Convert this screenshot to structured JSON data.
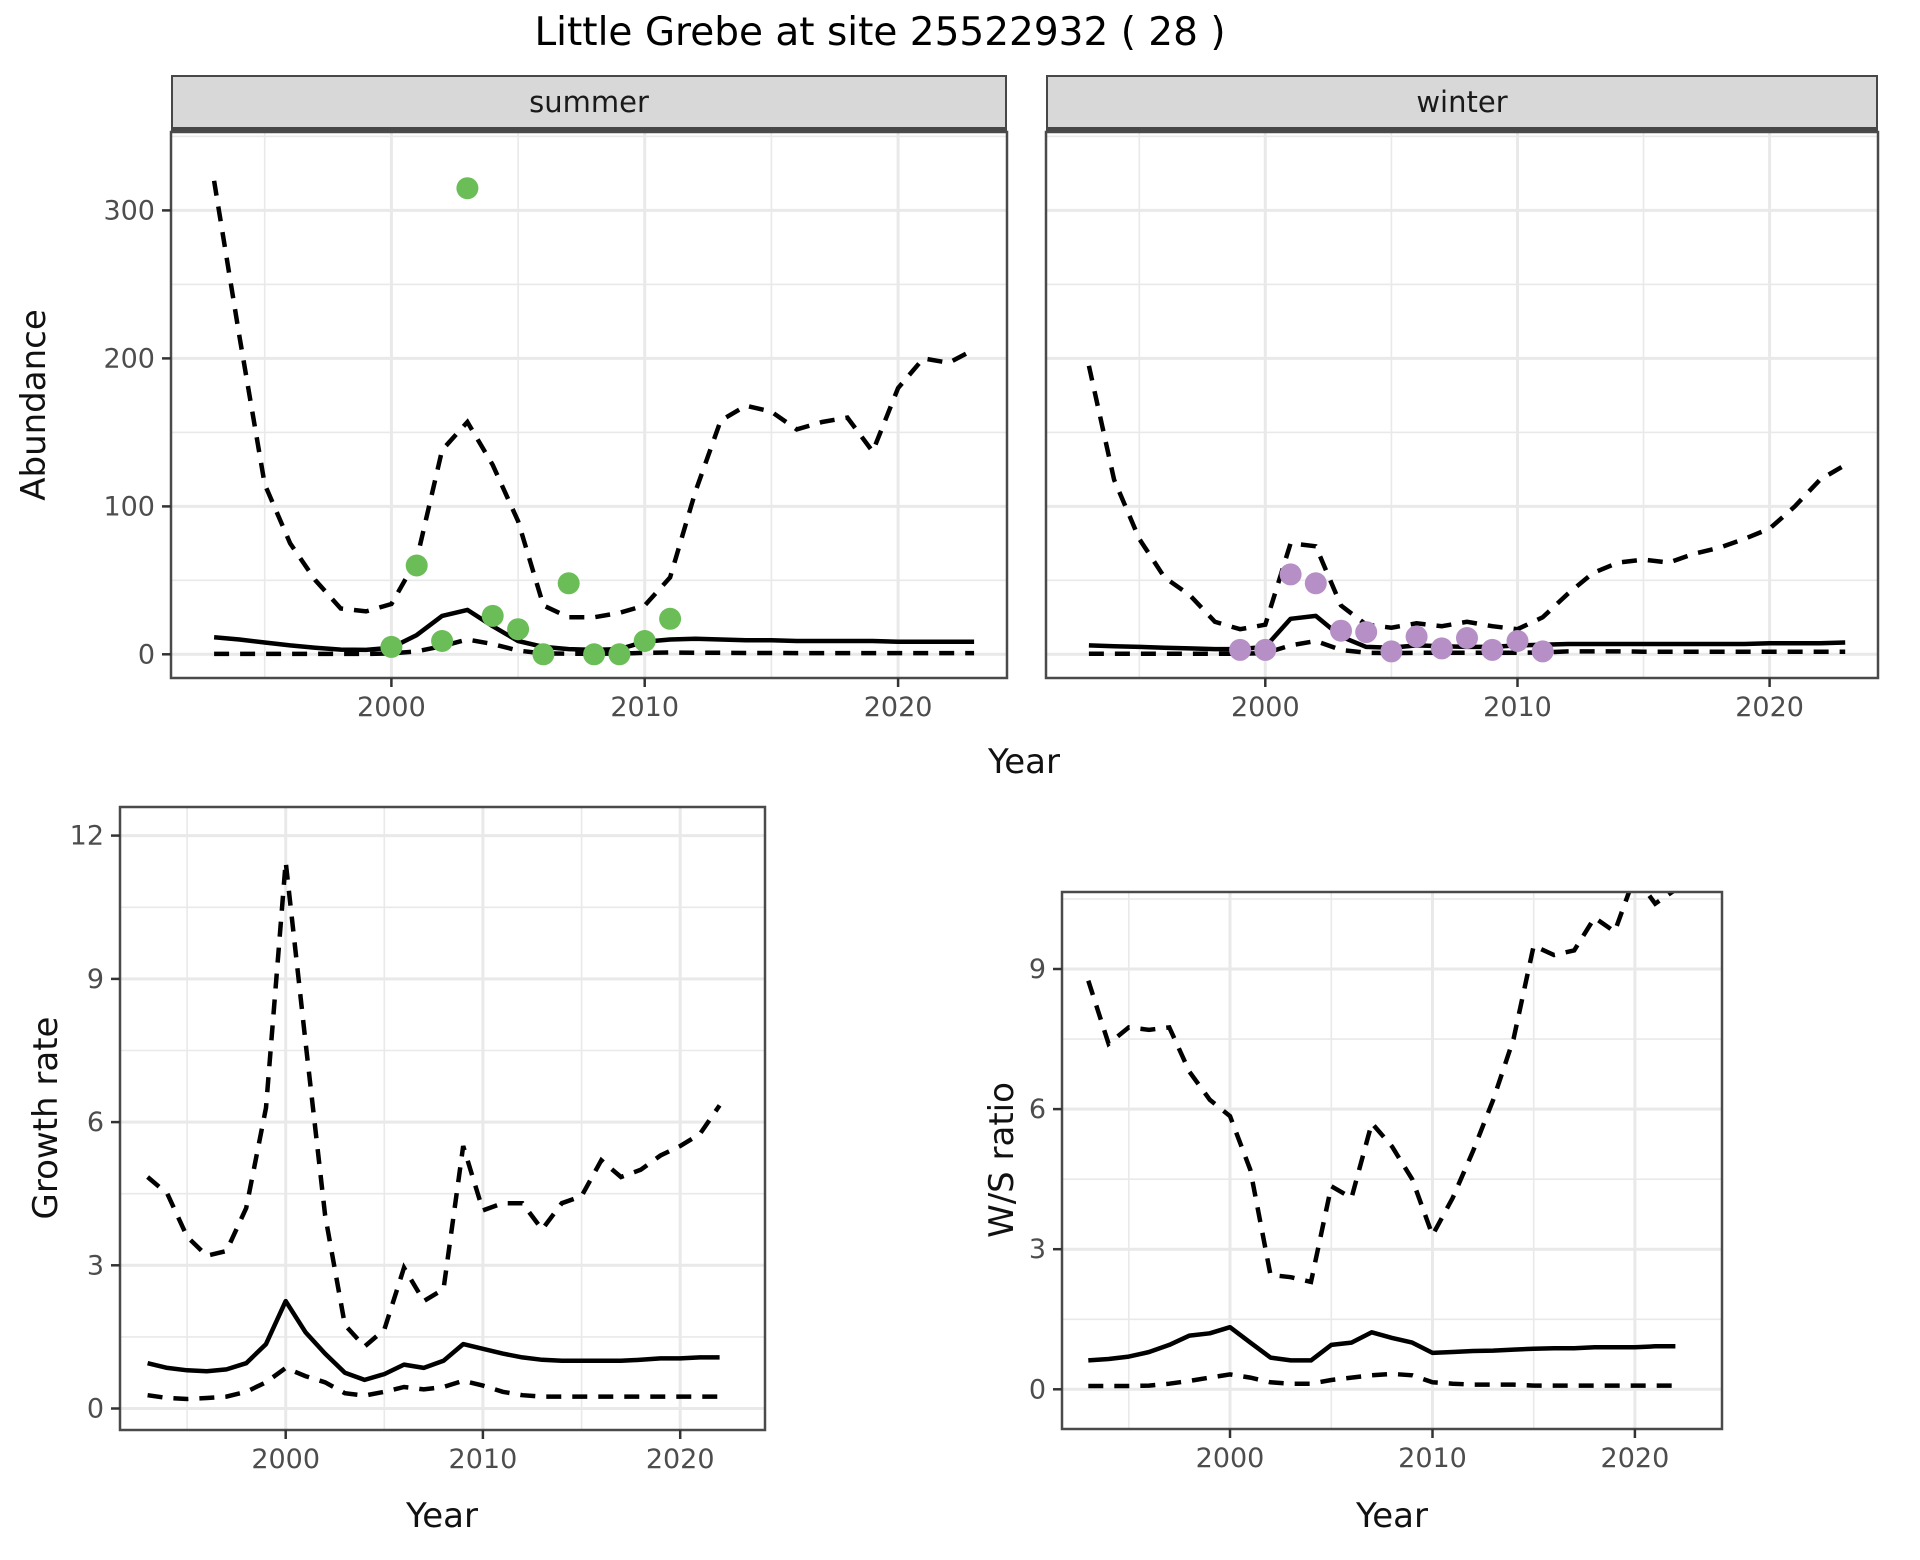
{
  "title": "Little Grebe at site 25522932 ( 28 )",
  "strips": {
    "summer": "summer",
    "winter": "winter"
  },
  "axis_titles": {
    "abundance": "Abundance",
    "year_top": "Year",
    "growth": "Growth rate",
    "year_growth": "Year",
    "ws": "W/S ratio",
    "year_ws": "Year"
  },
  "style": {
    "grid_color": "#e9e9e9",
    "border_color": "#4a4a4a",
    "tick_color": "#333333",
    "tick_label_color": "#4d4d4d",
    "line_color": "#000000",
    "summer_point_color": "#6bbd57",
    "winter_point_color": "#b58fc6",
    "strip_bg": "#d8d8d8"
  },
  "chart_data": [
    {
      "panel_id": "summer",
      "type": "line",
      "facet_label": "summer",
      "xlabel": "Year",
      "ylabel": "Abundance",
      "xlim": [
        1991.3,
        2024.3
      ],
      "ylim": [
        -16,
        353
      ],
      "x_ticks": [
        2000,
        2010,
        2020
      ],
      "y_ticks": [
        0,
        100,
        200,
        300
      ],
      "x_minor": [
        1995,
        2005,
        2015
      ],
      "y_minor": [
        50,
        150,
        250,
        350
      ],
      "show_y_labels": true,
      "years": [
        1993,
        1994,
        1995,
        1996,
        1997,
        1998,
        1999,
        2000,
        2001,
        2002,
        2003,
        2004,
        2005,
        2006,
        2007,
        2008,
        2009,
        2010,
        2011,
        2012,
        2013,
        2014,
        2015,
        2016,
        2017,
        2018,
        2019,
        2020,
        2021,
        2022,
        2023
      ],
      "series": {
        "upper_ci": [
          320,
          215,
          115,
          75,
          50,
          31,
          29,
          34,
          64,
          138,
          157,
          128,
          90,
          33,
          25,
          25,
          28,
          33,
          52,
          110,
          158,
          168,
          164,
          152,
          157,
          160,
          137,
          180,
          200,
          197,
          206
        ],
        "median": [
          11.5,
          10,
          8,
          6,
          4.5,
          3.2,
          3,
          4.5,
          13,
          26,
          30,
          19,
          9,
          5,
          3.5,
          3,
          3.5,
          8.5,
          10,
          10.5,
          10,
          9.5,
          9.5,
          9,
          9,
          9,
          9,
          8.5,
          8.5,
          8.5,
          8.5
        ],
        "lower_ci": [
          0.3,
          0.3,
          0.3,
          0.3,
          0.3,
          0.3,
          0.3,
          0.6,
          2,
          5.5,
          10,
          7,
          2.5,
          0.6,
          0.4,
          0.4,
          0.5,
          1,
          1.2,
          1,
          1,
          0.9,
          0.9,
          0.8,
          0.8,
          0.8,
          0.8,
          0.8,
          0.8,
          0.8,
          0.8
        ]
      },
      "points": {
        "color_key": "summer_point_color",
        "years": [
          2000,
          2001,
          2002,
          2003,
          2004,
          2005,
          2006,
          2007,
          2008,
          2009,
          2010,
          2011
        ],
        "values": [
          5,
          60,
          9,
          315,
          26,
          17,
          0,
          48,
          0,
          0,
          9,
          24
        ]
      }
    },
    {
      "panel_id": "winter",
      "type": "line",
      "facet_label": "winter",
      "xlabel": "Year",
      "ylabel": "Abundance",
      "xlim": [
        1991.3,
        2024.3
      ],
      "ylim": [
        -16,
        353
      ],
      "x_ticks": [
        2000,
        2010,
        2020
      ],
      "y_ticks": [
        0,
        100,
        200,
        300
      ],
      "x_minor": [
        1995,
        2005,
        2015
      ],
      "y_minor": [
        50,
        150,
        250,
        350
      ],
      "show_y_labels": false,
      "years": [
        1993,
        1994,
        1995,
        1996,
        1997,
        1998,
        1999,
        2000,
        2001,
        2002,
        2003,
        2004,
        2005,
        2006,
        2007,
        2008,
        2009,
        2010,
        2011,
        2012,
        2013,
        2014,
        2015,
        2016,
        2017,
        2018,
        2019,
        2020,
        2021,
        2022,
        2023
      ],
      "series": {
        "upper_ci": [
          195,
          118,
          78,
          52,
          40,
          22,
          17,
          20,
          75,
          73,
          33,
          20,
          18,
          21,
          19,
          22,
          19,
          17,
          25,
          41,
          55,
          62,
          64,
          62,
          68,
          72,
          78,
          85,
          100,
          118,
          128
        ],
        "median": [
          6,
          5.5,
          5,
          4.5,
          4,
          3.5,
          3.5,
          5,
          24,
          26,
          12,
          5,
          4.5,
          6,
          5.5,
          5,
          5,
          6,
          6.5,
          7,
          7,
          7,
          7,
          7,
          7,
          7,
          7,
          7.5,
          7.5,
          7.5,
          8
        ],
        "lower_ci": [
          0.4,
          0.4,
          0.4,
          0.4,
          0.4,
          0.4,
          0.4,
          0.8,
          6,
          9,
          3,
          1,
          0.8,
          1,
          1,
          1,
          1,
          1,
          1.2,
          2,
          2,
          2,
          1.8,
          1.8,
          1.8,
          1.8,
          1.8,
          1.8,
          1.8,
          1.8,
          1.8
        ]
      },
      "points": {
        "color_key": "winter_point_color",
        "years": [
          1999,
          2000,
          2001,
          2002,
          2003,
          2004,
          2005,
          2006,
          2007,
          2008,
          2009,
          2010,
          2011
        ],
        "values": [
          3,
          3,
          54,
          48,
          16,
          15,
          2,
          12,
          4,
          11,
          3,
          9,
          2
        ]
      }
    },
    {
      "panel_id": "growth",
      "type": "line",
      "facet_label": "",
      "xlabel": "Year",
      "ylabel": "Growth rate",
      "xlim": [
        1991.6,
        2024.3
      ],
      "ylim": [
        -0.45,
        12.6
      ],
      "x_ticks": [
        2000,
        2010,
        2020
      ],
      "y_ticks": [
        0,
        3,
        6,
        9,
        12
      ],
      "x_minor": [
        1995,
        2005,
        2015
      ],
      "y_minor": [
        1.5,
        4.5,
        7.5,
        10.5
      ],
      "show_y_labels": true,
      "years": [
        1993,
        1994,
        1995,
        1996,
        1997,
        1998,
        1999,
        2000,
        2001,
        2002,
        2003,
        2004,
        2005,
        2006,
        2007,
        2008,
        2009,
        2010,
        2011,
        2012,
        2013,
        2014,
        2015,
        2016,
        2017,
        2018,
        2019,
        2020,
        2021,
        2022
      ],
      "series": {
        "upper_ci": [
          4.85,
          4.5,
          3.6,
          3.2,
          3.3,
          4.2,
          6.3,
          11.45,
          7.7,
          4.05,
          1.75,
          1.3,
          1.65,
          2.95,
          2.25,
          2.5,
          5.5,
          4.15,
          4.3,
          4.3,
          3.75,
          4.3,
          4.45,
          5.2,
          4.85,
          5,
          5.3,
          5.5,
          5.75,
          6.35
        ],
        "median": [
          0.95,
          0.85,
          0.8,
          0.78,
          0.82,
          0.95,
          1.35,
          2.25,
          1.6,
          1.15,
          0.75,
          0.6,
          0.72,
          0.92,
          0.85,
          1,
          1.35,
          1.25,
          1.15,
          1.07,
          1.02,
          1,
          1,
          1,
          1,
          1.02,
          1.05,
          1.05,
          1.07,
          1.07
        ],
        "lower_ci": [
          0.28,
          0.22,
          0.2,
          0.22,
          0.25,
          0.35,
          0.55,
          0.85,
          0.68,
          0.55,
          0.32,
          0.27,
          0.35,
          0.45,
          0.4,
          0.45,
          0.58,
          0.48,
          0.35,
          0.28,
          0.25,
          0.25,
          0.25,
          0.25,
          0.25,
          0.25,
          0.25,
          0.25,
          0.25,
          0.25
        ]
      },
      "points": null
    },
    {
      "panel_id": "ws",
      "type": "line",
      "facet_label": "",
      "xlabel": "Year",
      "ylabel": "W/S ratio",
      "xlim": [
        1991.7,
        2024.3
      ],
      "ylim": [
        -0.85,
        10.65
      ],
      "x_ticks": [
        2000,
        2010,
        2020
      ],
      "y_ticks": [
        0,
        3,
        6,
        9
      ],
      "x_minor": [
        1995,
        2005,
        2015
      ],
      "y_minor": [
        1.5,
        4.5,
        7.5,
        10.5
      ],
      "show_y_labels": true,
      "years": [
        1993,
        1994,
        1995,
        1996,
        1997,
        1998,
        1999,
        2000,
        2001,
        2002,
        2003,
        2004,
        2005,
        2006,
        2007,
        2008,
        2009,
        2010,
        2011,
        2012,
        2013,
        2014,
        2015,
        2016,
        2017,
        2018,
        2019,
        2020,
        2021,
        2022
      ],
      "series": {
        "upper_ci": [
          8.75,
          7.4,
          7.75,
          7.7,
          7.75,
          6.8,
          6.2,
          5.85,
          4.7,
          2.45,
          2.4,
          2.3,
          4.35,
          4.1,
          5.7,
          5.2,
          4.5,
          3.3,
          4.1,
          5.1,
          6.2,
          7.5,
          9.5,
          9.3,
          9.4,
          10.1,
          9.8,
          11,
          10.4,
          10.7
        ],
        "median": [
          0.62,
          0.65,
          0.7,
          0.8,
          0.95,
          1.15,
          1.2,
          1.33,
          1,
          0.68,
          0.62,
          0.62,
          0.95,
          1,
          1.22,
          1.1,
          1,
          0.78,
          0.8,
          0.82,
          0.83,
          0.85,
          0.87,
          0.88,
          0.88,
          0.9,
          0.9,
          0.9,
          0.92,
          0.92
        ],
        "lower_ci": [
          0.07,
          0.07,
          0.07,
          0.08,
          0.12,
          0.18,
          0.25,
          0.32,
          0.25,
          0.15,
          0.12,
          0.12,
          0.2,
          0.25,
          0.3,
          0.33,
          0.3,
          0.15,
          0.12,
          0.1,
          0.1,
          0.1,
          0.08,
          0.08,
          0.08,
          0.08,
          0.08,
          0.08,
          0.08,
          0.08
        ]
      },
      "points": null
    }
  ]
}
